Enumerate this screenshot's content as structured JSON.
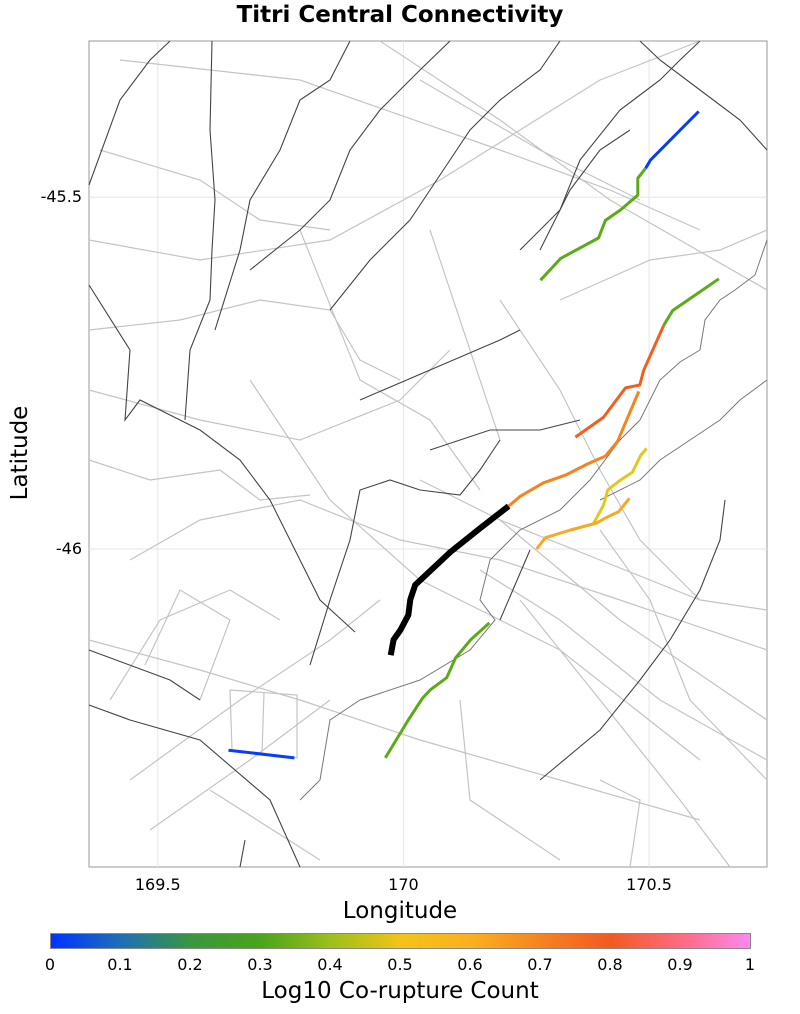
{
  "chart_data": {
    "type": "line",
    "title": "Titri Central Connectivity",
    "xlabel": "Longitude",
    "ylabel": "Latitude",
    "xlim": [
      169.36,
      170.74
    ],
    "ylim": [
      -46.452,
      -45.278
    ],
    "xticks": [
      {
        "v": 169.5,
        "label": "169.5"
      },
      {
        "v": 170,
        "label": "170"
      },
      {
        "v": 170.5,
        "label": "170.5"
      }
    ],
    "yticks": [
      {
        "v": -45.5,
        "label": "-45.5"
      },
      {
        "v": -46,
        "label": "-46"
      }
    ],
    "grid": true,
    "colorbar": {
      "label": "Log10 Co-rupture Count",
      "range": [
        0,
        1
      ],
      "ticks": [
        "0",
        "0.1",
        "0.2",
        "0.3",
        "0.4",
        "0.5",
        "0.6",
        "0.7",
        "0.8",
        "0.9",
        "1"
      ],
      "colormap": [
        "#0033ff",
        "#1f6fb5",
        "#3a9640",
        "#4aa41c",
        "#9cbf1c",
        "#f2c418",
        "#fbb020",
        "#f58420",
        "#f25a20",
        "#ff6a80",
        "#ff88ee"
      ]
    },
    "series": [
      {
        "name": "source",
        "value": null,
        "color": "#000000",
        "width": 6,
        "points": [
          [
            170.214,
            -45.939
          ],
          [
            170.157,
            -45.97
          ],
          [
            170.096,
            -46.004
          ],
          [
            170.024,
            -46.051
          ],
          [
            170.014,
            -46.072
          ],
          [
            170.01,
            -46.094
          ],
          [
            169.994,
            -46.115
          ],
          [
            169.98,
            -46.129
          ],
          [
            169.974,
            -46.151
          ]
        ]
      },
      {
        "name": "segment-blue-ne",
        "value": 0.0,
        "color": "#0a3cff",
        "width": 3,
        "points": [
          [
            170.601,
            -45.378
          ],
          [
            170.503,
            -45.447
          ],
          [
            170.493,
            -45.459
          ]
        ]
      },
      {
        "name": "segment-green-n",
        "value": 0.32,
        "color": "#5aab16",
        "width": 3,
        "points": [
          [
            170.493,
            -45.459
          ],
          [
            170.477,
            -45.473
          ],
          [
            170.477,
            -45.497
          ],
          [
            170.442,
            -45.518
          ],
          [
            170.411,
            -45.533
          ],
          [
            170.397,
            -45.558
          ],
          [
            170.32,
            -45.587
          ],
          [
            170.279,
            -45.618
          ]
        ]
      },
      {
        "name": "segment-green-e",
        "value": 0.32,
        "color": "#5aab16",
        "width": 3,
        "points": [
          [
            170.642,
            -45.616
          ],
          [
            170.548,
            -45.661
          ],
          [
            170.53,
            -45.682
          ]
        ]
      },
      {
        "name": "segment-red-orange",
        "value": 0.76,
        "color": "#f0601c",
        "width": 3,
        "points": [
          [
            170.53,
            -45.682
          ],
          [
            170.489,
            -45.746
          ],
          [
            170.481,
            -45.767
          ],
          [
            170.452,
            -45.771
          ],
          [
            170.407,
            -45.813
          ],
          [
            170.35,
            -45.841
          ]
        ]
      },
      {
        "name": "segment-orange",
        "value": 0.68,
        "color": "#f5841f",
        "width": 3,
        "points": [
          [
            170.479,
            -45.776
          ],
          [
            170.436,
            -45.847
          ],
          [
            170.411,
            -45.868
          ],
          [
            170.375,
            -45.879
          ],
          [
            170.33,
            -45.895
          ],
          [
            170.285,
            -45.906
          ],
          [
            170.238,
            -45.925
          ],
          [
            170.214,
            -45.939
          ]
        ]
      },
      {
        "name": "segment-yellow",
        "value": 0.47,
        "color": "#e2c81e",
        "width": 3,
        "points": [
          [
            170.495,
            -45.857
          ],
          [
            170.483,
            -45.867
          ],
          [
            170.466,
            -45.891
          ],
          [
            170.438,
            -45.904
          ],
          [
            170.416,
            -45.916
          ],
          [
            170.407,
            -45.938
          ],
          [
            170.385,
            -45.966
          ]
        ]
      },
      {
        "name": "segment-light-orange",
        "value": 0.57,
        "color": "#f8a822",
        "width": 3,
        "points": [
          [
            170.46,
            -45.928
          ],
          [
            170.438,
            -45.947
          ],
          [
            170.411,
            -45.956
          ],
          [
            170.393,
            -45.963
          ],
          [
            170.34,
            -45.973
          ],
          [
            170.289,
            -45.984
          ],
          [
            170.271,
            -46.0
          ]
        ]
      },
      {
        "name": "segment-green-s",
        "value": 0.32,
        "color": "#5aab16",
        "width": 3,
        "points": [
          [
            170.175,
            -46.105
          ],
          [
            170.137,
            -46.129
          ],
          [
            170.106,
            -46.155
          ],
          [
            170.088,
            -46.183
          ],
          [
            170.055,
            -46.2
          ],
          [
            170.039,
            -46.212
          ],
          [
            170.01,
            -46.243
          ],
          [
            169.963,
            -46.297
          ]
        ]
      },
      {
        "name": "segment-blue-sw",
        "value": 0.0,
        "color": "#0a3cff",
        "width": 3,
        "points": [
          [
            169.644,
            -46.286
          ],
          [
            169.778,
            -46.297
          ]
        ]
      }
    ]
  }
}
